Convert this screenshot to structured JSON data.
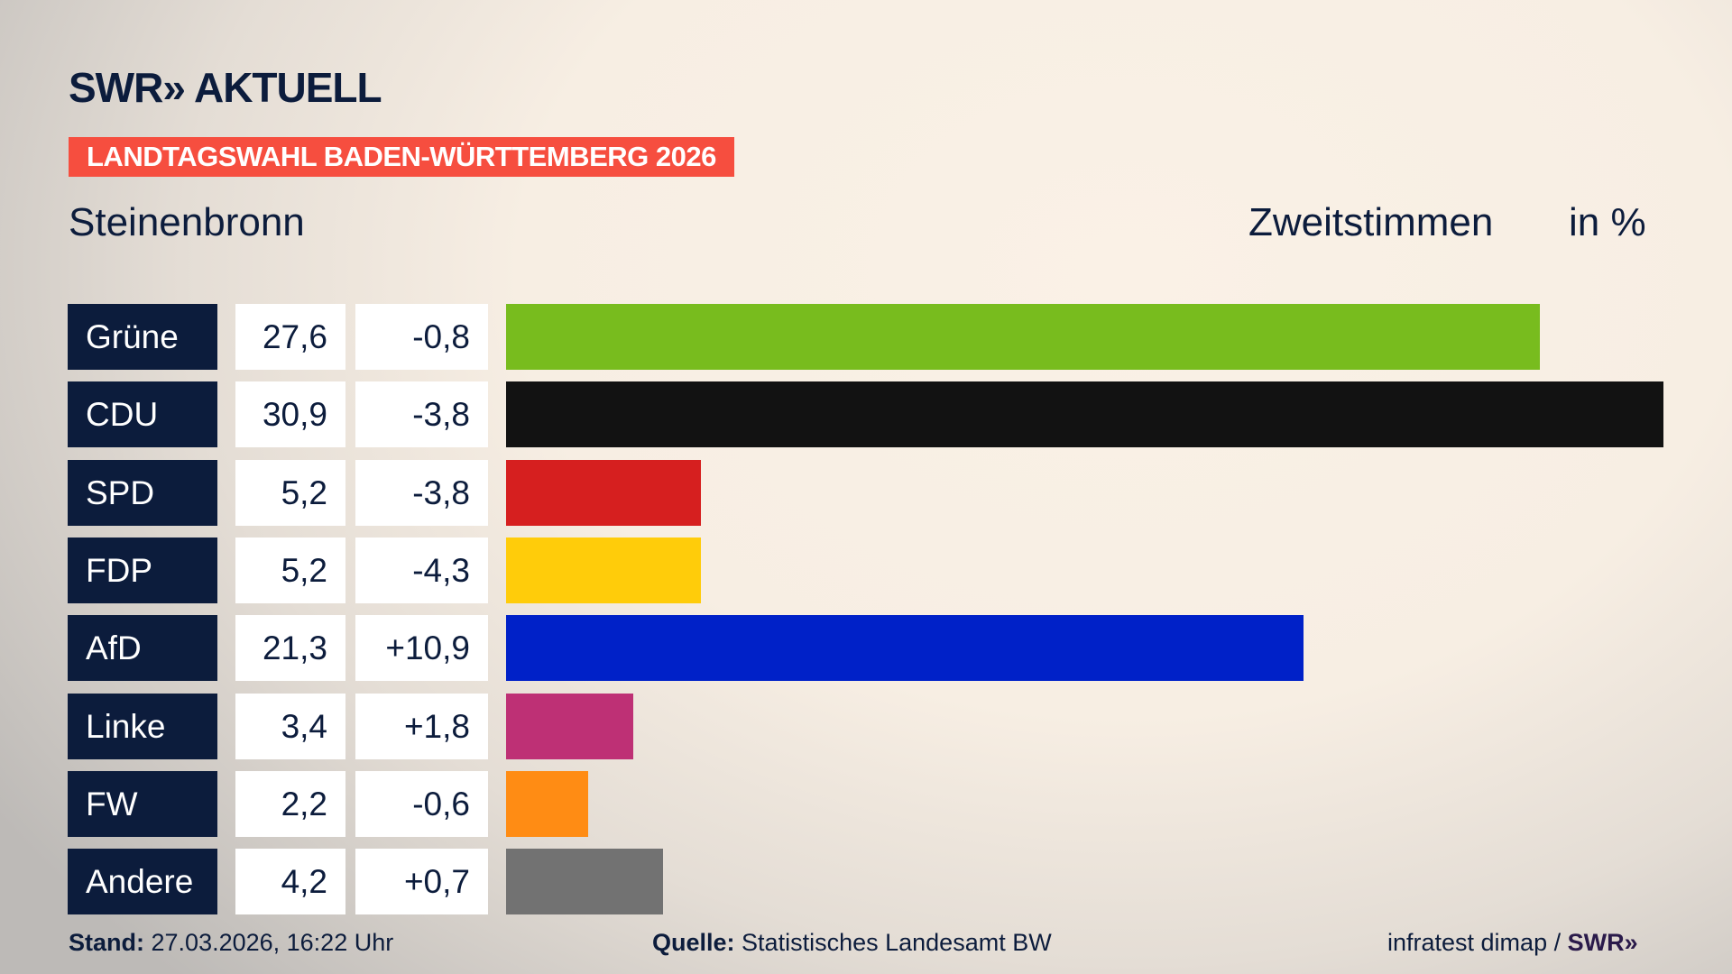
{
  "header": {
    "logo": "SWR» AKTUELL",
    "banner": "LANDTAGSWAHL BADEN-WÜRTTEMBERG 2026",
    "place": "Steinenbronn",
    "vote_type": "Zweitstimmen",
    "unit": "in %"
  },
  "chart_data": {
    "type": "bar",
    "orientation": "horizontal",
    "categories": [
      "Grüne",
      "CDU",
      "SPD",
      "FDP",
      "AfD",
      "Linke",
      "FW",
      "Andere"
    ],
    "values": [
      27.6,
      30.9,
      5.2,
      5.2,
      21.3,
      3.4,
      2.2,
      4.2
    ],
    "values_label": [
      "27,6",
      "30,9",
      "5,2",
      "5,2",
      "21,3",
      "3,4",
      "2,2",
      "4,2"
    ],
    "diff_label": [
      "-0,8",
      "-3,8",
      "-3,8",
      "-4,3",
      "+10,9",
      "+1,8",
      "-0,6",
      "+0,7"
    ],
    "colors": [
      "#78bc1e",
      "#121212",
      "#d61f1f",
      "#ffcc0a",
      "#0021c8",
      "#be3075",
      "#ff8c14",
      "#727272"
    ],
    "xlim": [
      0,
      30.9
    ]
  },
  "footer": {
    "stand_label": "Stand:",
    "stand_value": "27.03.2026, 16:22 Uhr",
    "source_label": "Quelle:",
    "source_value": "Statistisches Landesamt BW",
    "credit": "infratest dimap / ",
    "credit_logo": "SWR»"
  }
}
